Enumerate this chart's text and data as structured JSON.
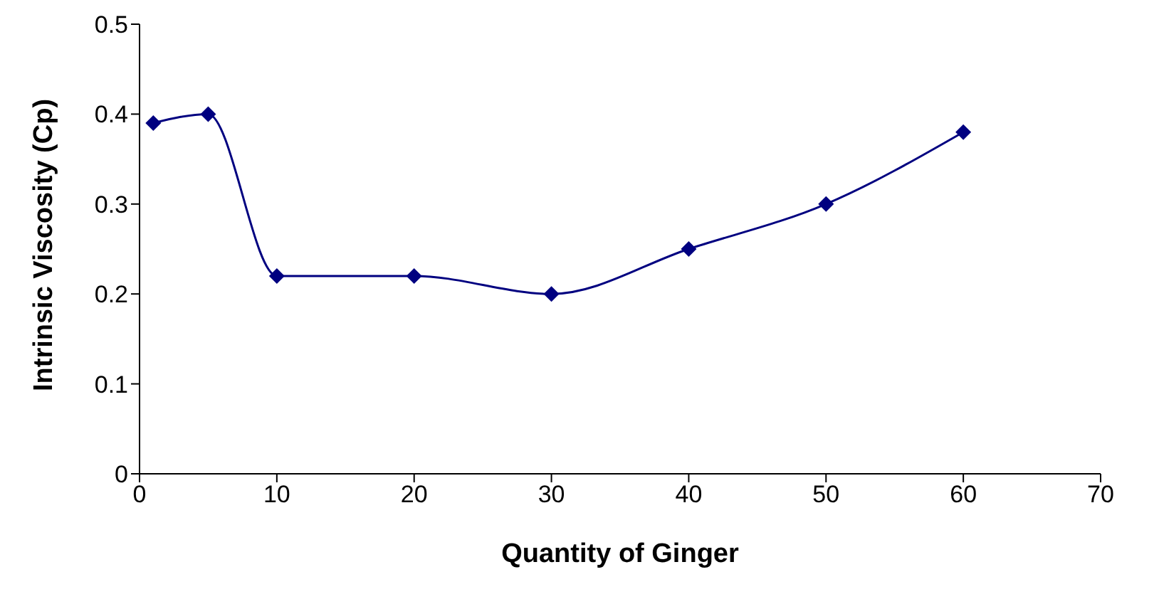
{
  "chart_data": {
    "type": "line",
    "xlabel": "Quantity of Ginger",
    "ylabel": "Intrinsic Viscosity (Cp)",
    "x": [
      1,
      5,
      10,
      20,
      30,
      40,
      50,
      60
    ],
    "series": [
      {
        "color": "#000080",
        "values": [
          0.39,
          0.4,
          0.22,
          0.22,
          0.2,
          0.25,
          0.3,
          0.38
        ]
      }
    ],
    "xlim": [
      0,
      70
    ],
    "xticks": [
      0,
      10,
      20,
      30,
      40,
      50,
      60,
      70
    ],
    "ylim": [
      0,
      0.5
    ],
    "yticks": [
      0,
      0.1,
      0.2,
      0.3,
      0.4,
      0.5
    ],
    "grid": false,
    "legend": false,
    "marker": "diamond",
    "line_style": "solid"
  }
}
